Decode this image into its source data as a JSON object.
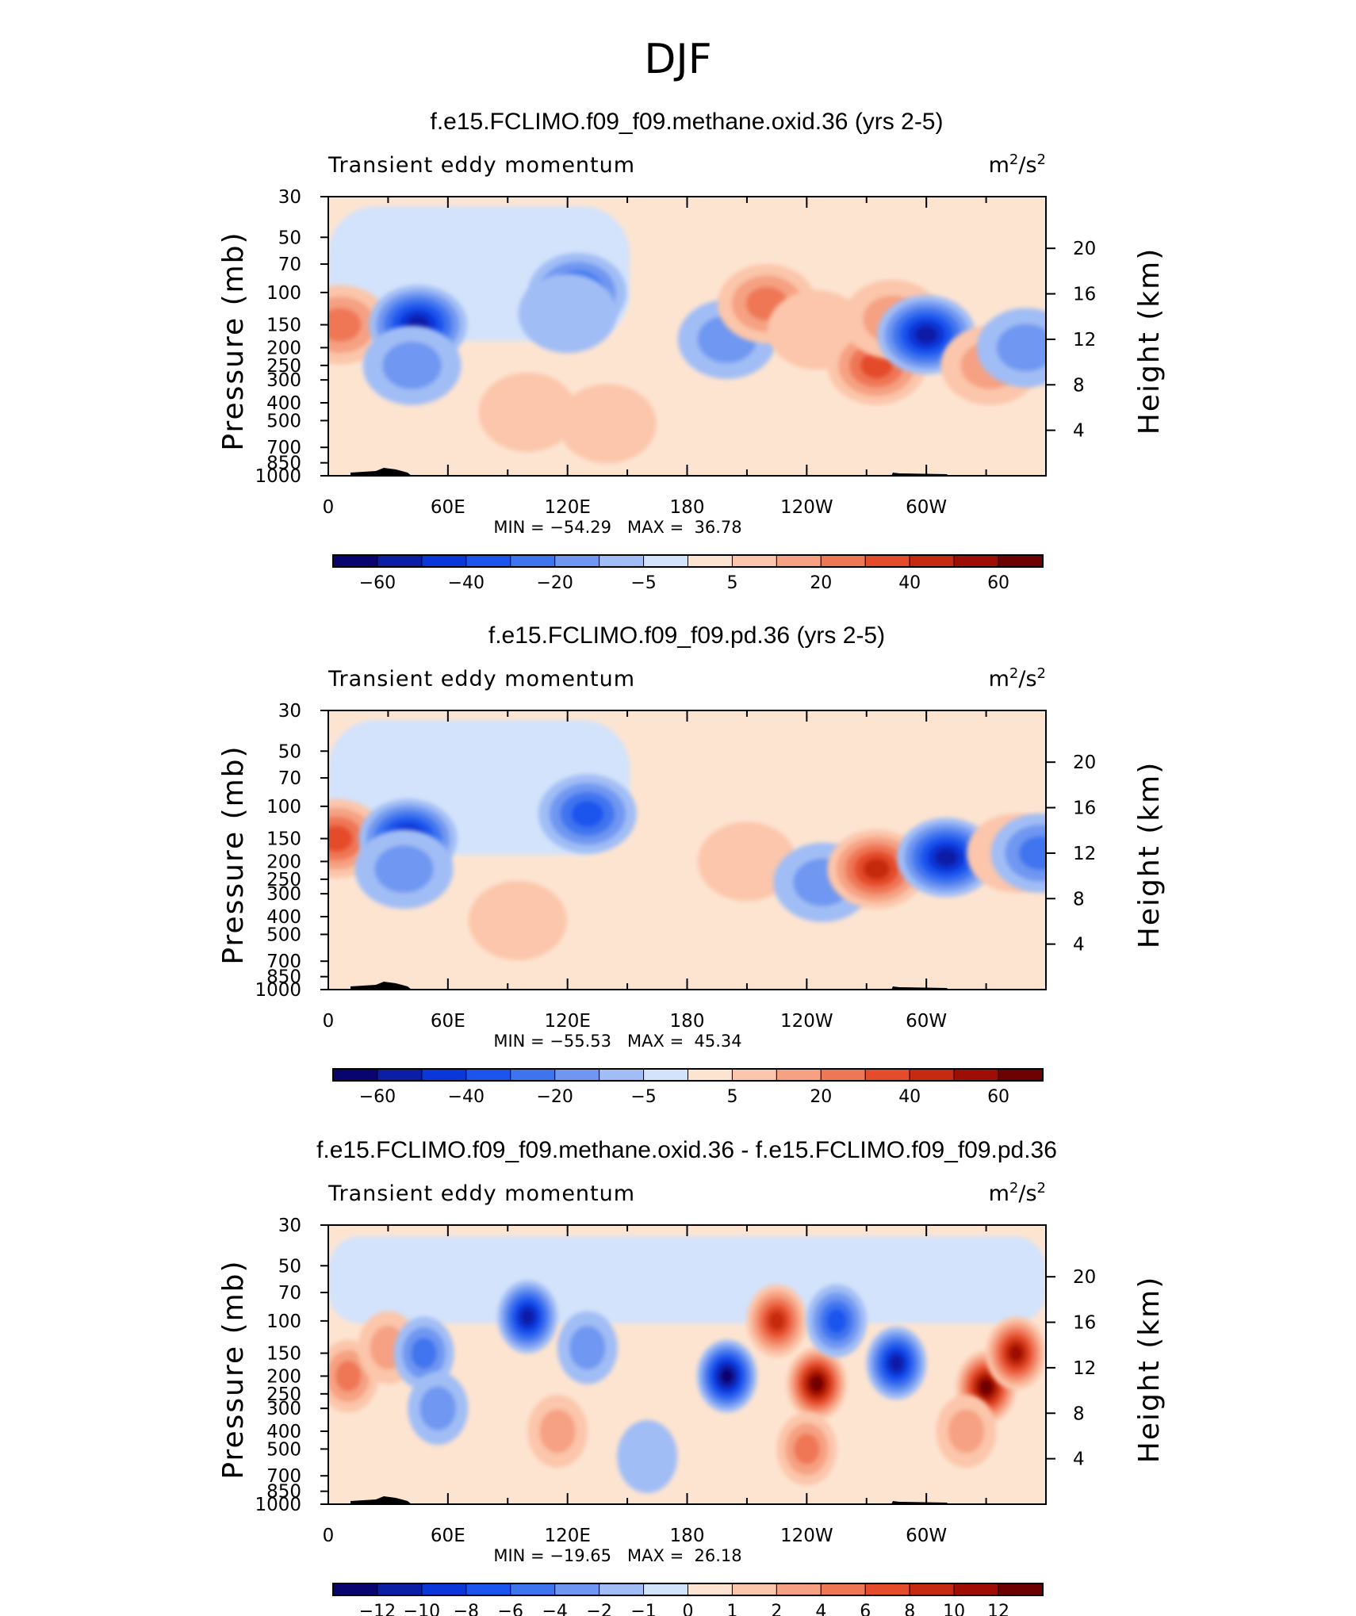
{
  "figure_title": "DJF",
  "chart_data": [
    {
      "type": "heatmap",
      "title": "f.e15.FCLIMO.f09_f09.methane.oxid.36 (yrs 2-5)",
      "left_label": "Transient eddy momentum",
      "units_text": "m",
      "units_sup1": "2",
      "units_mid": "/s",
      "units_sup2": "2",
      "ylabel": "Pressure (mb)",
      "ylabel_right": "Height (km)",
      "x_ticks": [
        "0",
        "60E",
        "120E",
        "180",
        "120W",
        "60W"
      ],
      "y_ticks": [
        "30",
        "50",
        "70",
        "100",
        "150",
        "200",
        "250",
        "300",
        "400",
        "500",
        "700",
        "850",
        "1000"
      ],
      "y_ticks_right": [
        "20",
        "16",
        "12",
        "8",
        "4"
      ],
      "stats": "MIN = −54.29   MAX =  36.78",
      "colorbar_labels": [
        "−60",
        "−40",
        "−20",
        "−5",
        "5",
        "20",
        "40",
        "60"
      ],
      "features": [
        {
          "lon": 6,
          "p": 150,
          "value": 28
        },
        {
          "lon": 45,
          "p": 150,
          "value": -50
        },
        {
          "lon": 42,
          "p": 250,
          "value": -18
        },
        {
          "lon": 125,
          "p": 100,
          "value": -32
        },
        {
          "lon": 120,
          "p": 130,
          "value": -12
        },
        {
          "lon": 200,
          "p": 180,
          "value": -14
        },
        {
          "lon": 220,
          "p": 115,
          "value": 22
        },
        {
          "lon": 245,
          "p": 160,
          "value": 12
        },
        {
          "lon": 275,
          "p": 250,
          "value": 30
        },
        {
          "lon": 283,
          "p": 140,
          "value": 14
        },
        {
          "lon": 300,
          "p": 170,
          "value": -54
        },
        {
          "lon": 332,
          "p": 250,
          "value": 18
        },
        {
          "lon": 350,
          "p": 200,
          "value": -15
        },
        {
          "lon": 100,
          "p": 450,
          "value": 8
        },
        {
          "lon": 140,
          "p": 520,
          "value": 5
        }
      ]
    },
    {
      "type": "heatmap",
      "title": "f.e15.FCLIMO.f09_f09.pd.36 (yrs 2-5)",
      "left_label": "Transient eddy momentum",
      "units_text": "m",
      "units_sup1": "2",
      "units_mid": "/s",
      "units_sup2": "2",
      "ylabel": "Pressure (mb)",
      "ylabel_right": "Height (km)",
      "x_ticks": [
        "0",
        "60E",
        "120E",
        "180",
        "120W",
        "60W"
      ],
      "y_ticks": [
        "30",
        "50",
        "70",
        "100",
        "150",
        "200",
        "250",
        "300",
        "400",
        "500",
        "700",
        "850",
        "1000"
      ],
      "y_ticks_right": [
        "20",
        "16",
        "12",
        "8",
        "4"
      ],
      "stats": "MIN = −55.53   MAX =  45.34",
      "colorbar_labels": [
        "−60",
        "−40",
        "−20",
        "−5",
        "5",
        "20",
        "40",
        "60"
      ],
      "features": [
        {
          "lon": 4,
          "p": 150,
          "value": 30
        },
        {
          "lon": 40,
          "p": 150,
          "value": -52
        },
        {
          "lon": 38,
          "p": 220,
          "value": -20
        },
        {
          "lon": 130,
          "p": 110,
          "value": -30
        },
        {
          "lon": 210,
          "p": 200,
          "value": 10
        },
        {
          "lon": 248,
          "p": 260,
          "value": -18
        },
        {
          "lon": 275,
          "p": 220,
          "value": 45
        },
        {
          "lon": 310,
          "p": 190,
          "value": -55
        },
        {
          "lon": 345,
          "p": 180,
          "value": 8
        },
        {
          "lon": 357,
          "p": 180,
          "value": -25
        },
        {
          "lon": 95,
          "p": 420,
          "value": 6
        }
      ]
    },
    {
      "type": "heatmap",
      "title": "f.e15.FCLIMO.f09_f09.methane.oxid.36 - f.e15.FCLIMO.f09_f09.pd.36",
      "left_label": "Transient eddy momentum",
      "units_text": "m",
      "units_sup1": "2",
      "units_mid": "/s",
      "units_sup2": "2",
      "ylabel": "Pressure (mb)",
      "ylabel_right": "Height (km)",
      "x_ticks": [
        "0",
        "60E",
        "120E",
        "180",
        "120W",
        "60W"
      ],
      "y_ticks": [
        "30",
        "50",
        "70",
        "100",
        "150",
        "200",
        "250",
        "300",
        "400",
        "500",
        "700",
        "850",
        "1000"
      ],
      "y_ticks_right": [
        "20",
        "16",
        "12",
        "8",
        "4"
      ],
      "stats": "MIN = −19.65   MAX =  26.18",
      "colorbar_labels": [
        "−12",
        "−10",
        "−8",
        "−6",
        "−4",
        "−2",
        "−1",
        "0",
        "1",
        "2",
        "4",
        "6",
        "8",
        "10",
        "12"
      ],
      "features": [
        {
          "lon": 10,
          "p": 200,
          "value": 8
        },
        {
          "lon": 30,
          "p": 140,
          "value": 7
        },
        {
          "lon": 48,
          "p": 150,
          "value": -8
        },
        {
          "lon": 55,
          "p": 300,
          "value": -6
        },
        {
          "lon": 100,
          "p": 95,
          "value": -16
        },
        {
          "lon": 130,
          "p": 140,
          "value": -6
        },
        {
          "lon": 115,
          "p": 400,
          "value": 5
        },
        {
          "lon": 200,
          "p": 200,
          "value": -19
        },
        {
          "lon": 225,
          "p": 100,
          "value": 14
        },
        {
          "lon": 245,
          "p": 220,
          "value": 22
        },
        {
          "lon": 255,
          "p": 100,
          "value": -12
        },
        {
          "lon": 285,
          "p": 170,
          "value": -17
        },
        {
          "lon": 330,
          "p": 230,
          "value": 20
        },
        {
          "lon": 345,
          "p": 150,
          "value": 18
        },
        {
          "lon": 320,
          "p": 400,
          "value": 6
        },
        {
          "lon": 240,
          "p": 500,
          "value": 8
        },
        {
          "lon": 160,
          "p": 550,
          "value": -3
        }
      ]
    }
  ]
}
